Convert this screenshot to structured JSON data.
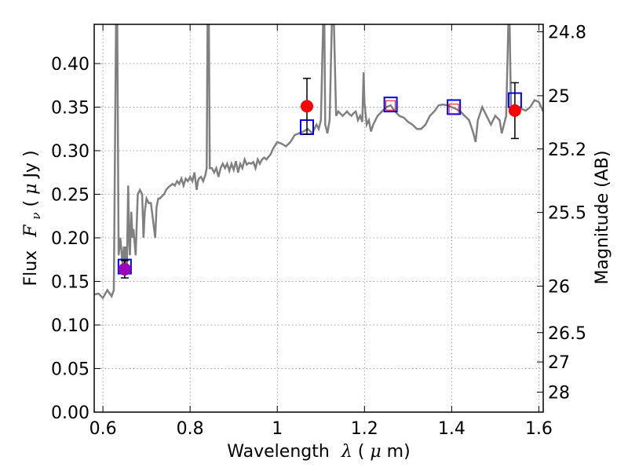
{
  "chart_data": {
    "type": "line",
    "xlabel": {
      "prefix": "Wavelength",
      "symbol": "λ",
      "unit_open": " (",
      "unit_sym": "μ",
      "unit_rest": "m)"
    },
    "ylabel": {
      "prefix": "Flux",
      "symbol": "F",
      "sub": "ν",
      "unit_open": " ( ",
      "unit_sym": "μ",
      "unit_rest": "Jy )"
    },
    "y2label": "Magnitude (AB)",
    "xlim": [
      0.58,
      1.61
    ],
    "ylim": [
      0.0,
      0.445
    ],
    "grid": true,
    "x_ticks": [
      0.6,
      0.8,
      1.0,
      1.2,
      1.4,
      1.6
    ],
    "x_tick_labels": [
      "0.6",
      "0.8",
      "1",
      "1.2",
      "1.4",
      "1.6"
    ],
    "y_ticks": [
      0.0,
      0.05,
      0.1,
      0.15,
      0.2,
      0.25,
      0.3,
      0.35,
      0.4
    ],
    "y_tick_labels": [
      "0.00",
      "0.05",
      "0.10",
      "0.15",
      "0.20",
      "0.25",
      "0.30",
      "0.35",
      "0.40"
    ],
    "mag_ticks": [
      {
        "mag": 24.8,
        "label": "24.8"
      },
      {
        "mag": 25.0,
        "label": "25"
      },
      {
        "mag": 25.2,
        "label": "25.2"
      },
      {
        "mag": 25.5,
        "label": "25.5"
      },
      {
        "mag": 26.0,
        "label": "26"
      },
      {
        "mag": 26.5,
        "label": "26.5"
      },
      {
        "mag": 27.0,
        "label": "27"
      },
      {
        "mag": 28.0,
        "label": "28"
      }
    ],
    "colors": {
      "spectrum": "#808080",
      "measured": "#ff0000",
      "measured_optical": "#9b00b4",
      "model": "#0000ff",
      "errorbar": "#000000",
      "grid": "#888888"
    },
    "spectrum": [
      [
        0.58,
        0.135
      ],
      [
        0.59,
        0.136
      ],
      [
        0.6,
        0.131
      ],
      [
        0.61,
        0.14
      ],
      [
        0.62,
        0.133
      ],
      [
        0.625,
        0.14
      ],
      [
        0.63,
        0.445
      ],
      [
        0.633,
        0.445
      ],
      [
        0.636,
        0.18
      ],
      [
        0.64,
        0.2
      ],
      [
        0.645,
        0.17
      ],
      [
        0.648,
        0.19
      ],
      [
        0.65,
        0.16
      ],
      [
        0.652,
        0.19
      ],
      [
        0.655,
        0.17
      ],
      [
        0.658,
        0.26
      ],
      [
        0.66,
        0.2
      ],
      [
        0.662,
        0.18
      ],
      [
        0.665,
        0.23
      ],
      [
        0.668,
        0.2
      ],
      [
        0.67,
        0.21
      ],
      [
        0.675,
        0.18
      ],
      [
        0.68,
        0.25
      ],
      [
        0.685,
        0.255
      ],
      [
        0.69,
        0.25
      ],
      [
        0.693,
        0.2
      ],
      [
        0.696,
        0.23
      ],
      [
        0.7,
        0.245
      ],
      [
        0.705,
        0.24
      ],
      [
        0.71,
        0.24
      ],
      [
        0.715,
        0.22
      ],
      [
        0.72,
        0.2
      ],
      [
        0.723,
        0.235
      ],
      [
        0.727,
        0.245
      ],
      [
        0.73,
        0.245
      ],
      [
        0.74,
        0.25
      ],
      [
        0.745,
        0.255
      ],
      [
        0.75,
        0.258
      ],
      [
        0.755,
        0.26
      ],
      [
        0.76,
        0.262
      ],
      [
        0.765,
        0.26
      ],
      [
        0.77,
        0.265
      ],
      [
        0.775,
        0.262
      ],
      [
        0.78,
        0.268
      ],
      [
        0.785,
        0.26
      ],
      [
        0.79,
        0.268
      ],
      [
        0.795,
        0.265
      ],
      [
        0.8,
        0.27
      ],
      [
        0.805,
        0.265
      ],
      [
        0.81,
        0.275
      ],
      [
        0.815,
        0.255
      ],
      [
        0.818,
        0.265
      ],
      [
        0.82,
        0.268
      ],
      [
        0.825,
        0.27
      ],
      [
        0.83,
        0.265
      ],
      [
        0.835,
        0.272
      ],
      [
        0.838,
        0.28
      ],
      [
        0.84,
        0.445
      ],
      [
        0.843,
        0.445
      ],
      [
        0.845,
        0.28
      ],
      [
        0.85,
        0.28
      ],
      [
        0.855,
        0.275
      ],
      [
        0.86,
        0.28
      ],
      [
        0.865,
        0.27
      ],
      [
        0.87,
        0.28
      ],
      [
        0.875,
        0.285
      ],
      [
        0.88,
        0.28
      ],
      [
        0.885,
        0.285
      ],
      [
        0.89,
        0.277
      ],
      [
        0.895,
        0.285
      ],
      [
        0.9,
        0.278
      ],
      [
        0.905,
        0.288
      ],
      [
        0.91,
        0.275
      ],
      [
        0.915,
        0.285
      ],
      [
        0.92,
        0.28
      ],
      [
        0.925,
        0.29
      ],
      [
        0.93,
        0.284
      ],
      [
        0.935,
        0.286
      ],
      [
        0.94,
        0.285
      ],
      [
        0.945,
        0.287
      ],
      [
        0.95,
        0.28
      ],
      [
        0.955,
        0.29
      ],
      [
        0.96,
        0.285
      ],
      [
        0.965,
        0.29
      ],
      [
        0.97,
        0.292
      ],
      [
        0.975,
        0.29
      ],
      [
        0.98,
        0.293
      ],
      [
        0.985,
        0.296
      ],
      [
        0.99,
        0.302
      ],
      [
        0.995,
        0.306
      ],
      [
        1.0,
        0.31
      ],
      [
        1.01,
        0.308
      ],
      [
        1.02,
        0.305
      ],
      [
        1.03,
        0.31
      ],
      [
        1.04,
        0.318
      ],
      [
        1.05,
        0.32
      ],
      [
        1.06,
        0.322
      ],
      [
        1.07,
        0.325
      ],
      [
        1.08,
        0.32
      ],
      [
        1.09,
        0.33
      ],
      [
        1.095,
        0.325
      ],
      [
        1.1,
        0.335
      ],
      [
        1.105,
        0.445
      ],
      [
        1.108,
        0.445
      ],
      [
        1.11,
        0.33
      ],
      [
        1.115,
        0.32
      ],
      [
        1.12,
        0.335
      ],
      [
        1.125,
        0.445
      ],
      [
        1.13,
        0.445
      ],
      [
        1.135,
        0.34
      ],
      [
        1.14,
        0.345
      ],
      [
        1.15,
        0.34
      ],
      [
        1.16,
        0.345
      ],
      [
        1.165,
        0.342
      ],
      [
        1.17,
        0.34
      ],
      [
        1.175,
        0.343
      ],
      [
        1.18,
        0.345
      ],
      [
        1.185,
        0.335
      ],
      [
        1.19,
        0.34
      ],
      [
        1.195,
        0.333
      ],
      [
        1.198,
        0.39
      ],
      [
        1.2,
        0.355
      ],
      [
        1.205,
        0.33
      ],
      [
        1.21,
        0.335
      ],
      [
        1.215,
        0.322
      ],
      [
        1.22,
        0.33
      ],
      [
        1.23,
        0.34
      ],
      [
        1.24,
        0.345
      ],
      [
        1.25,
        0.35
      ],
      [
        1.26,
        0.352
      ],
      [
        1.27,
        0.345
      ],
      [
        1.28,
        0.34
      ],
      [
        1.29,
        0.338
      ],
      [
        1.3,
        0.333
      ],
      [
        1.31,
        0.33
      ],
      [
        1.32,
        0.325
      ],
      [
        1.33,
        0.325
      ],
      [
        1.34,
        0.33
      ],
      [
        1.35,
        0.34
      ],
      [
        1.36,
        0.345
      ],
      [
        1.37,
        0.352
      ],
      [
        1.38,
        0.353
      ],
      [
        1.39,
        0.352
      ],
      [
        1.4,
        0.35
      ],
      [
        1.41,
        0.348
      ],
      [
        1.42,
        0.345
      ],
      [
        1.43,
        0.34
      ],
      [
        1.44,
        0.335
      ],
      [
        1.45,
        0.32
      ],
      [
        1.455,
        0.31
      ],
      [
        1.46,
        0.335
      ],
      [
        1.47,
        0.35
      ],
      [
        1.48,
        0.34
      ],
      [
        1.49,
        0.33
      ],
      [
        1.5,
        0.34
      ],
      [
        1.51,
        0.335
      ],
      [
        1.515,
        0.32
      ],
      [
        1.52,
        0.33
      ],
      [
        1.525,
        0.34
      ],
      [
        1.53,
        0.445
      ],
      [
        1.533,
        0.445
      ],
      [
        1.536,
        0.35
      ],
      [
        1.54,
        0.345
      ],
      [
        1.55,
        0.35
      ],
      [
        1.56,
        0.348
      ],
      [
        1.57,
        0.346
      ],
      [
        1.58,
        0.35
      ],
      [
        1.59,
        0.358
      ],
      [
        1.6,
        0.356
      ],
      [
        1.61,
        0.345
      ]
    ],
    "observed": [
      {
        "x": 0.65,
        "y": 0.164,
        "err": 0.01,
        "color": "measured_optical"
      },
      {
        "x": 1.068,
        "y": 0.351,
        "err": 0.032,
        "color": "measured"
      },
      {
        "x": 1.545,
        "y": 0.346,
        "err": 0.032,
        "color": "measured"
      }
    ],
    "model_points": [
      {
        "x": 0.65,
        "y": 0.167
      },
      {
        "x": 1.068,
        "y": 0.327
      },
      {
        "x": 1.26,
        "y": 0.353
      },
      {
        "x": 1.405,
        "y": 0.35
      },
      {
        "x": 1.545,
        "y": 0.358
      }
    ],
    "hollow_points": [
      {
        "x": 1.26,
        "y": 0.352
      },
      {
        "x": 1.405,
        "y": 0.348
      }
    ]
  }
}
